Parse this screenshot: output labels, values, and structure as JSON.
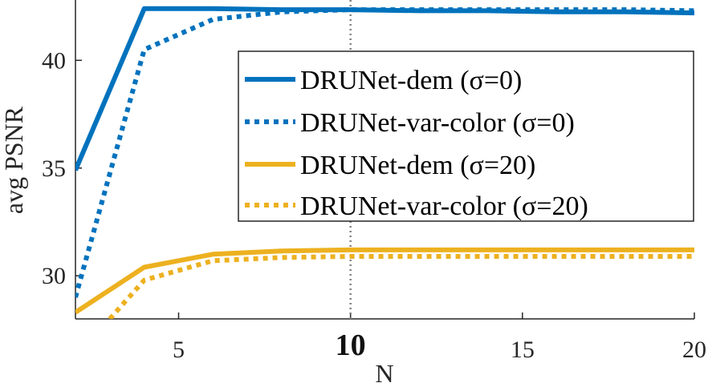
{
  "chart_data": {
    "type": "line",
    "xlabel": "N",
    "ylabel": "avg PSNR",
    "xlim": [
      2,
      20
    ],
    "ylim": [
      28,
      42.8
    ],
    "xticks": [
      5,
      10,
      15,
      20
    ],
    "xtick_labels": [
      "5",
      "10",
      "15",
      "20"
    ],
    "bold_xtick": 10,
    "yticks": [
      30,
      35,
      40
    ],
    "ytick_labels": [
      "30",
      "35",
      "40"
    ],
    "reference_line": {
      "x": 10,
      "style": "dotted",
      "color": "#808080"
    },
    "grid": false,
    "legend_position": "upper-right",
    "series": [
      {
        "name": "DRUNet-dem (σ=0)",
        "color": "#0072BD",
        "style": "solid",
        "x": [
          2,
          4,
          6,
          8,
          10,
          12,
          14,
          16,
          18,
          20
        ],
        "y": [
          34.9,
          42.4,
          42.4,
          42.35,
          42.35,
          42.3,
          42.3,
          42.25,
          42.25,
          42.2
        ]
      },
      {
        "name": "DRUNet-var-color (σ=0)",
        "color": "#0072BD",
        "style": "dotted",
        "x": [
          2,
          4,
          6,
          8,
          10,
          12,
          14,
          16,
          18,
          20
        ],
        "y": [
          29.0,
          40.5,
          41.9,
          42.25,
          42.35,
          42.35,
          42.35,
          42.35,
          42.35,
          42.3
        ]
      },
      {
        "name": "DRUNet-dem (σ=20)",
        "color": "#EDB120",
        "style": "solid",
        "x": [
          2,
          4,
          6,
          8,
          10,
          12,
          14,
          16,
          18,
          20
        ],
        "y": [
          28.3,
          30.4,
          31.0,
          31.15,
          31.2,
          31.2,
          31.2,
          31.2,
          31.2,
          31.2
        ]
      },
      {
        "name": "DRUNet-var-color (σ=20)",
        "color": "#EDB120",
        "style": "dotted",
        "x": [
          3,
          4,
          6,
          8,
          10,
          12,
          14,
          16,
          18,
          20
        ],
        "y": [
          28.0,
          29.8,
          30.7,
          30.85,
          30.9,
          30.9,
          30.9,
          30.9,
          30.9,
          30.9
        ]
      }
    ]
  }
}
